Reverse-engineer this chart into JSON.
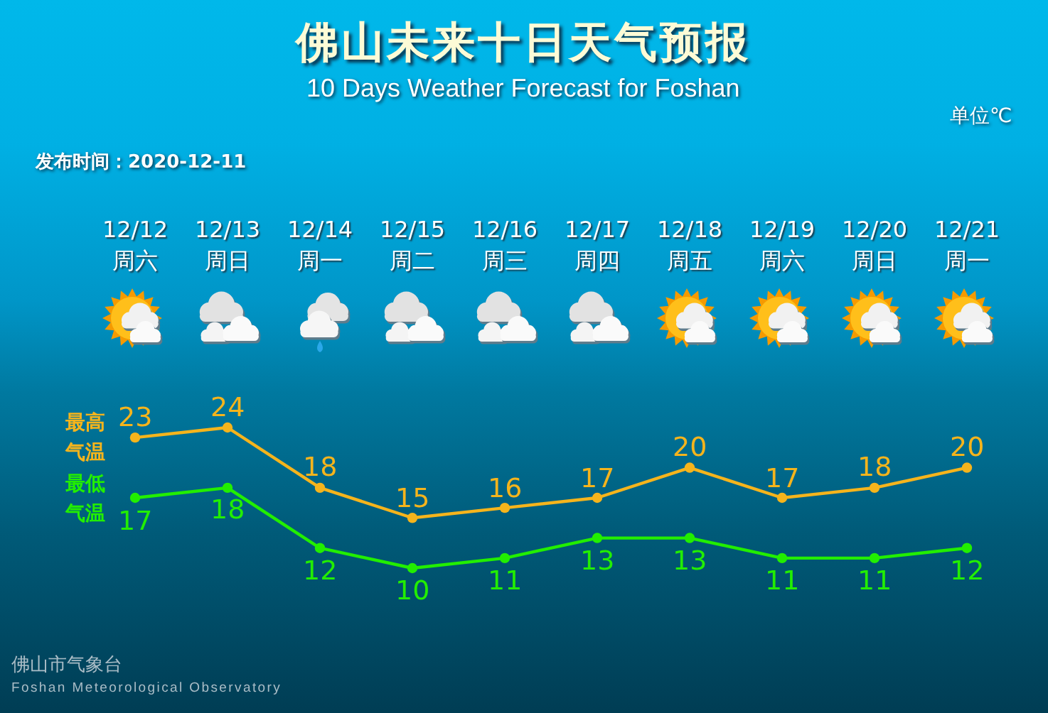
{
  "chart_data": {
    "type": "line",
    "title": "佛山未来十日天气预报",
    "subtitle": "10 Days Weather Forecast for Foshan",
    "categories": [
      "12/12 周六",
      "12/13 周日",
      "12/14 周一",
      "12/15 周二",
      "12/16 周三",
      "12/17 周四",
      "12/18 周五",
      "12/19 周六",
      "12/20 周日",
      "12/21 周一"
    ],
    "series": [
      {
        "name": "最高气温",
        "color": "#f5b41c",
        "values": [
          23,
          24,
          18,
          15,
          16,
          17,
          20,
          17,
          18,
          20
        ]
      },
      {
        "name": "最低气温",
        "color": "#22ee00",
        "values": [
          17,
          18,
          12,
          10,
          11,
          13,
          13,
          11,
          11,
          12
        ]
      }
    ],
    "data_labels": true,
    "marker": "circle",
    "line_style": "solid",
    "annotations": [
      "单位℃",
      "发布时间：2020-12-11",
      "佛山市气象台",
      "Foshan Meteorological Observatory"
    ]
  }
}
